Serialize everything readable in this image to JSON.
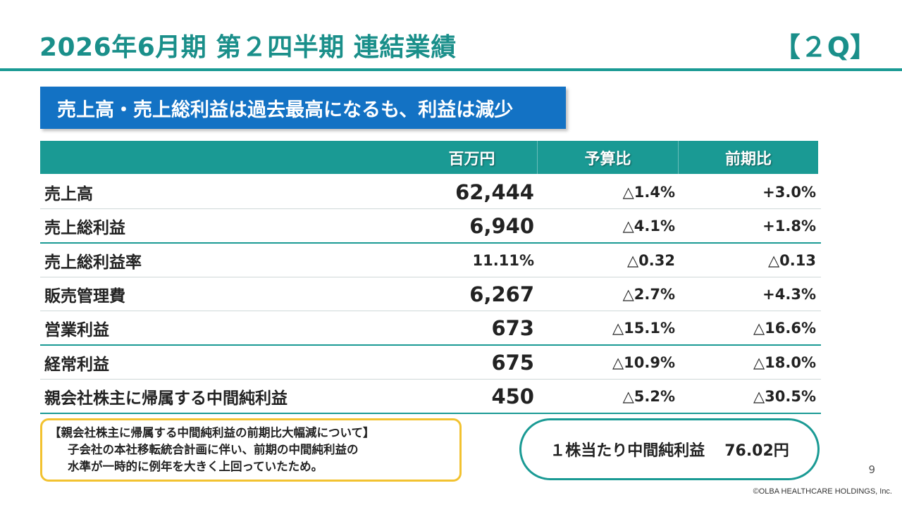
{
  "header": {
    "title": "2026年6月期 第２四半期 連結業績",
    "quarter_badge": "【２Q】"
  },
  "headline": "売上高・売上総利益は過去最高になるも、利益は減少",
  "table": {
    "columns": [
      "百万円",
      "予算比",
      "前期比"
    ],
    "rows": [
      {
        "label": "売上高",
        "value": "62,444",
        "budget": "△1.4%",
        "prev": "+3.0%"
      },
      {
        "label": "売上総利益",
        "value": "6,940",
        "budget": "△4.1%",
        "prev": "+1.8%"
      },
      {
        "label": "売上総利益率",
        "value": "11.11%",
        "budget": "△0.32",
        "prev": "△0.13"
      },
      {
        "label": "販売管理費",
        "value": "6,267",
        "budget": "△2.7%",
        "prev": "+4.3%"
      },
      {
        "label": "営業利益",
        "value": "673",
        "budget": "△15.1%",
        "prev": "△16.6%"
      },
      {
        "label": "経常利益",
        "value": "675",
        "budget": "△10.9%",
        "prev": "△18.0%"
      },
      {
        "label": "親会社株主に帰属する中間純利益",
        "value": "450",
        "budget": "△5.2%",
        "prev": "△30.5%"
      }
    ]
  },
  "note": {
    "heading": "【親会社株主に帰属する中間純利益の前期比大幅減について】",
    "line1": "子会社の本社移転統合計画に伴い、前期の中間純利益の",
    "line2": "水準が一時的に例年を大きく上回っていたため。"
  },
  "eps": {
    "label": "１株当たり中間純利益",
    "value": "76.02円"
  },
  "page_number": "9",
  "copyright": "©OLBA HEALTHCARE HOLDINGS, Inc.",
  "colors": {
    "teal": "#1a9a94",
    "title_teal": "#1a8f8a",
    "headline_blue": "#1372c4",
    "note_border": "#f2c230"
  }
}
